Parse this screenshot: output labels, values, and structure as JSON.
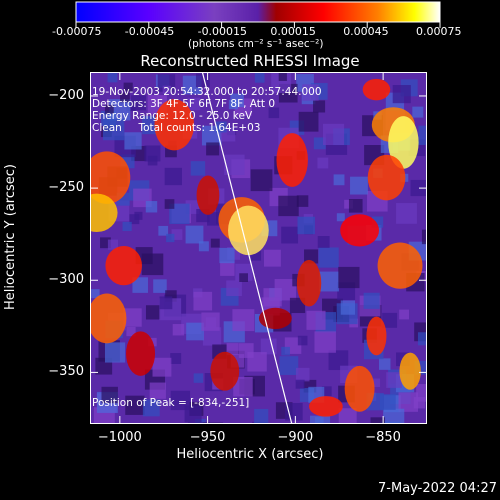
{
  "chart_data": {
    "type": "heatmap",
    "title": "Reconstructed RHESSI Image",
    "xlabel": "Heliocentric X (arcsec)",
    "ylabel": "Heliocentric Y (arcsec)",
    "xlim": [
      -1017,
      -825
    ],
    "ylim": [
      -378,
      -187
    ],
    "xticks": [
      -1000,
      -950,
      -900,
      -850
    ],
    "yticks": [
      -200,
      -250,
      -300,
      -350
    ],
    "colorbar": {
      "ticks": [
        "-0.00075",
        "-0.00045",
        "-0.00015",
        "0.00015",
        "0.00045",
        "0.00075"
      ],
      "unit": "(photons cm⁻² s⁻¹ asec⁻²)",
      "range": [
        -0.00075,
        0.00075
      ],
      "colors": [
        "#0000ff",
        "#6a00ff",
        "#7a3fc8",
        "#6e2bd0",
        "#ff0000",
        "#ff8000",
        "#ffff00",
        "#ffffff"
      ]
    },
    "annotations": [
      "19-Nov-2003 20:54:32.000 to 20:57:44.000",
      "Detectors: 3F 4F 5F 6F 7F 8F, Att 0",
      "Energy Range: 12.0 - 25.0 keV",
      "Clean     Total counts: 1.64E+03"
    ],
    "peak_label": "Position of Peak = [-834,-251]",
    "peak": {
      "x": -834,
      "y": -251
    },
    "limb_line": {
      "x": [
        -953,
        -902
      ],
      "y": [
        -187,
        -378
      ]
    },
    "grid": false
  },
  "footer": "7-May-2022 04:27"
}
